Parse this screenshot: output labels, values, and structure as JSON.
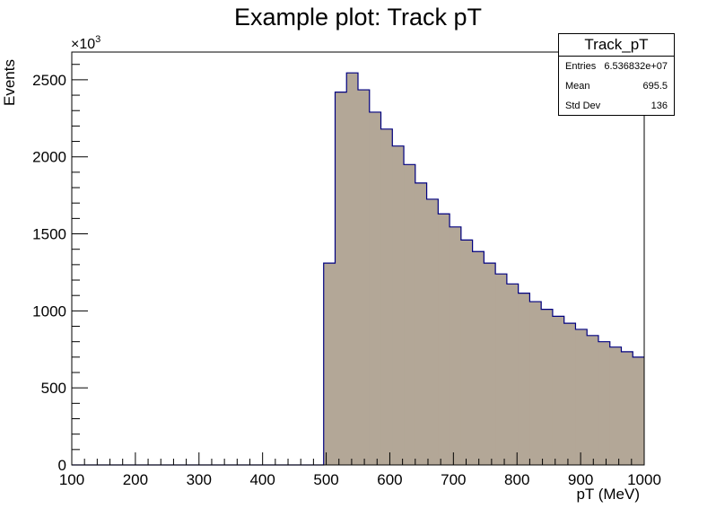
{
  "colors": {
    "fill": "#b3a797",
    "line": "#000080",
    "axis": "#000000"
  },
  "chart_data": {
    "type": "bar",
    "title": "Example plot: Track pT",
    "xlabel": "pT (MeV)",
    "ylabel": "Events",
    "y_multiplier": "×10",
    "y_multiplier_exp": "3",
    "xlim": [
      100,
      1000
    ],
    "ylim": [
      0,
      2680
    ],
    "xticks": [
      100,
      200,
      300,
      400,
      500,
      600,
      700,
      800,
      900,
      1000
    ],
    "yticks": [
      0,
      500,
      1000,
      1500,
      2000,
      2500
    ],
    "bin_width": 18,
    "bins": [
      {
        "x0": 100,
        "value": 0
      },
      {
        "x0": 118,
        "value": 0
      },
      {
        "x0": 136,
        "value": 0
      },
      {
        "x0": 154,
        "value": 0
      },
      {
        "x0": 172,
        "value": 0
      },
      {
        "x0": 190,
        "value": 0
      },
      {
        "x0": 208,
        "value": 0
      },
      {
        "x0": 226,
        "value": 0
      },
      {
        "x0": 244,
        "value": 0
      },
      {
        "x0": 262,
        "value": 0
      },
      {
        "x0": 280,
        "value": 0
      },
      {
        "x0": 298,
        "value": 0
      },
      {
        "x0": 316,
        "value": 0
      },
      {
        "x0": 334,
        "value": 0
      },
      {
        "x0": 352,
        "value": 0
      },
      {
        "x0": 370,
        "value": 0
      },
      {
        "x0": 388,
        "value": 0
      },
      {
        "x0": 406,
        "value": 0
      },
      {
        "x0": 424,
        "value": 0
      },
      {
        "x0": 442,
        "value": 0
      },
      {
        "x0": 460,
        "value": 0
      },
      {
        "x0": 478,
        "value": 0
      },
      {
        "x0": 496,
        "value": 1310
      },
      {
        "x0": 514,
        "value": 2420
      },
      {
        "x0": 532,
        "value": 2545
      },
      {
        "x0": 550,
        "value": 2435
      },
      {
        "x0": 568,
        "value": 2290
      },
      {
        "x0": 586,
        "value": 2180
      },
      {
        "x0": 604,
        "value": 2070
      },
      {
        "x0": 622,
        "value": 1950
      },
      {
        "x0": 640,
        "value": 1830
      },
      {
        "x0": 658,
        "value": 1725
      },
      {
        "x0": 676,
        "value": 1630
      },
      {
        "x0": 694,
        "value": 1545
      },
      {
        "x0": 712,
        "value": 1460
      },
      {
        "x0": 730,
        "value": 1385
      },
      {
        "x0": 748,
        "value": 1310
      },
      {
        "x0": 766,
        "value": 1240
      },
      {
        "x0": 784,
        "value": 1175
      },
      {
        "x0": 802,
        "value": 1115
      },
      {
        "x0": 820,
        "value": 1060
      },
      {
        "x0": 838,
        "value": 1010
      },
      {
        "x0": 856,
        "value": 965
      },
      {
        "x0": 874,
        "value": 920
      },
      {
        "x0": 892,
        "value": 880
      },
      {
        "x0": 910,
        "value": 840
      },
      {
        "x0": 928,
        "value": 800
      },
      {
        "x0": 946,
        "value": 765
      },
      {
        "x0": 964,
        "value": 735
      },
      {
        "x0": 982,
        "value": 700
      }
    ]
  },
  "stats": {
    "title": "Track_pT",
    "rows": [
      {
        "label": "Entries",
        "value": "6.536832e+07"
      },
      {
        "label": "Mean",
        "value": "695.5"
      },
      {
        "label": "Std Dev",
        "value": "136"
      }
    ]
  }
}
